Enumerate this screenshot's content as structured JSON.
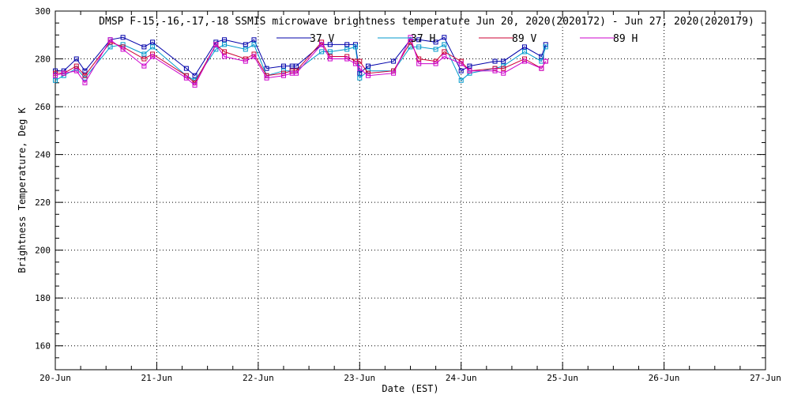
{
  "chart_data": {
    "type": "line",
    "title": "DMSP F-15,-16,-17,-18 SSMIS microwave brightness temperature Jun 20, 2020(2020172) - Jun 27, 2020(2020179)",
    "xlabel": "Date (EST)",
    "ylabel": "Brightness Temperature, Deg K",
    "xlim": [
      "2020-06-20T00:00",
      "2020-06-27T00:00"
    ],
    "ylim": [
      150,
      300
    ],
    "x_tick_labels": [
      "20-Jun",
      "21-Jun",
      "22-Jun",
      "23-Jun",
      "24-Jun",
      "25-Jun",
      "26-Jun",
      "27-Jun"
    ],
    "x_tick_values": [
      "2020-06-20T00:00",
      "2020-06-21T00:00",
      "2020-06-22T00:00",
      "2020-06-23T00:00",
      "2020-06-24T00:00",
      "2020-06-25T00:00",
      "2020-06-26T00:00",
      "2020-06-27T00:00"
    ],
    "y_tick_labels": [
      "160",
      "180",
      "200",
      "220",
      "240",
      "260",
      "280",
      "300"
    ],
    "y_tick_values": [
      160,
      180,
      200,
      220,
      240,
      260,
      280,
      300
    ],
    "grid": true,
    "legend_position": "top",
    "series": [
      {
        "name": "37 V",
        "color": "#0000aa",
        "points": [
          [
            "2020-06-20T00:00",
            275
          ],
          [
            "2020-06-20T02:00",
            275
          ],
          [
            "2020-06-20T05:00",
            280
          ],
          [
            "2020-06-20T07:00",
            275
          ],
          [
            "2020-06-20T13:00",
            288
          ],
          [
            "2020-06-20T16:00",
            289
          ],
          [
            "2020-06-20T21:00",
            285
          ],
          [
            "2020-06-20T23:00",
            287
          ],
          [
            "2020-06-21T07:00",
            276
          ],
          [
            "2020-06-21T09:00",
            273
          ],
          [
            "2020-06-21T14:00",
            287
          ],
          [
            "2020-06-21T16:00",
            288
          ],
          [
            "2020-06-21T21:00",
            286
          ],
          [
            "2020-06-21T23:00",
            288
          ],
          [
            "2020-06-22T02:00",
            276
          ],
          [
            "2020-06-22T06:00",
            277
          ],
          [
            "2020-06-22T08:00",
            277
          ],
          [
            "2020-06-22T09:00",
            277
          ],
          [
            "2020-06-22T15:00",
            286
          ],
          [
            "2020-06-22T17:00",
            286
          ],
          [
            "2020-06-22T21:00",
            286
          ],
          [
            "2020-06-22T23:00",
            286
          ],
          [
            "2020-06-23T00:00",
            274
          ],
          [
            "2020-06-23T02:00",
            277
          ],
          [
            "2020-06-23T08:00",
            279
          ],
          [
            "2020-06-23T12:00",
            288
          ],
          [
            "2020-06-23T14:00",
            288
          ],
          [
            "2020-06-23T18:00",
            287
          ],
          [
            "2020-06-23T20:00",
            289
          ],
          [
            "2020-06-24T00:00",
            275
          ],
          [
            "2020-06-24T02:00",
            277
          ],
          [
            "2020-06-24T08:00",
            279
          ],
          [
            "2020-06-24T10:00",
            279
          ],
          [
            "2020-06-24T15:00",
            285
          ],
          [
            "2020-06-24T19:00",
            281
          ],
          [
            "2020-06-24T20:00",
            286
          ]
        ]
      },
      {
        "name": "37 H",
        "color": "#0099cc",
        "points": [
          [
            "2020-06-20T00:00",
            271
          ],
          [
            "2020-06-20T02:00",
            273
          ],
          [
            "2020-06-20T05:00",
            276
          ],
          [
            "2020-06-20T07:00",
            272
          ],
          [
            "2020-06-20T13:00",
            285
          ],
          [
            "2020-06-20T16:00",
            286
          ],
          [
            "2020-06-20T21:00",
            282
          ],
          [
            "2020-06-20T23:00",
            285
          ],
          [
            "2020-06-21T07:00",
            273
          ],
          [
            "2020-06-21T09:00",
            271
          ],
          [
            "2020-06-21T14:00",
            284
          ],
          [
            "2020-06-21T16:00",
            286
          ],
          [
            "2020-06-21T21:00",
            284
          ],
          [
            "2020-06-21T23:00",
            286
          ],
          [
            "2020-06-22T02:00",
            273
          ],
          [
            "2020-06-22T06:00",
            275
          ],
          [
            "2020-06-22T08:00",
            275
          ],
          [
            "2020-06-22T09:00",
            275
          ],
          [
            "2020-06-22T15:00",
            283
          ],
          [
            "2020-06-22T17:00",
            283
          ],
          [
            "2020-06-22T21:00",
            284
          ],
          [
            "2020-06-22T23:00",
            285
          ],
          [
            "2020-06-23T00:00",
            272
          ],
          [
            "2020-06-23T02:00",
            275
          ],
          [
            "2020-06-23T08:00",
            275
          ],
          [
            "2020-06-23T12:00",
            285
          ],
          [
            "2020-06-23T14:00",
            285
          ],
          [
            "2020-06-23T18:00",
            284
          ],
          [
            "2020-06-23T20:00",
            286
          ],
          [
            "2020-06-24T00:00",
            271
          ],
          [
            "2020-06-24T02:00",
            274
          ],
          [
            "2020-06-24T08:00",
            276
          ],
          [
            "2020-06-24T10:00",
            277
          ],
          [
            "2020-06-24T15:00",
            283
          ],
          [
            "2020-06-24T19:00",
            279
          ],
          [
            "2020-06-24T20:00",
            285
          ]
        ]
      },
      {
        "name": "89 V",
        "color": "#cc0033",
        "points": [
          [
            "2020-06-20T00:00",
            274
          ],
          [
            "2020-06-20T02:00",
            274
          ],
          [
            "2020-06-20T05:00",
            277
          ],
          [
            "2020-06-20T07:00",
            273
          ],
          [
            "2020-06-20T13:00",
            287
          ],
          [
            "2020-06-20T16:00",
            285
          ],
          [
            "2020-06-20T21:00",
            280
          ],
          [
            "2020-06-20T23:00",
            282
          ],
          [
            "2020-06-21T07:00",
            273
          ],
          [
            "2020-06-21T09:00",
            270
          ],
          [
            "2020-06-21T14:00",
            286
          ],
          [
            "2020-06-21T16:00",
            283
          ],
          [
            "2020-06-21T21:00",
            280
          ],
          [
            "2020-06-21T23:00",
            282
          ],
          [
            "2020-06-22T02:00",
            273
          ],
          [
            "2020-06-22T06:00",
            274
          ],
          [
            "2020-06-22T08:00",
            275
          ],
          [
            "2020-06-22T09:00",
            275
          ],
          [
            "2020-06-22T15:00",
            287
          ],
          [
            "2020-06-22T17:00",
            281
          ],
          [
            "2020-06-22T21:00",
            281
          ],
          [
            "2020-06-22T23:00",
            279
          ],
          [
            "2020-06-23T00:00",
            279
          ],
          [
            "2020-06-23T02:00",
            274
          ],
          [
            "2020-06-23T08:00",
            275
          ],
          [
            "2020-06-23T12:00",
            287
          ],
          [
            "2020-06-23T14:00",
            280
          ],
          [
            "2020-06-23T18:00",
            279
          ],
          [
            "2020-06-23T20:00",
            283
          ],
          [
            "2020-06-24T00:00",
            279
          ],
          [
            "2020-06-24T02:00",
            275
          ],
          [
            "2020-06-24T08:00",
            276
          ],
          [
            "2020-06-24T10:00",
            276
          ],
          [
            "2020-06-24T15:00",
            280
          ],
          [
            "2020-06-24T19:00",
            276
          ],
          [
            "2020-06-24T20:00",
            279
          ]
        ]
      },
      {
        "name": "89 H",
        "color": "#cc00cc",
        "points": [
          [
            "2020-06-20T00:00",
            273
          ],
          [
            "2020-06-20T02:00",
            274
          ],
          [
            "2020-06-20T05:00",
            275
          ],
          [
            "2020-06-20T07:00",
            270
          ],
          [
            "2020-06-20T13:00",
            288
          ],
          [
            "2020-06-20T16:00",
            284
          ],
          [
            "2020-06-20T21:00",
            277
          ],
          [
            "2020-06-20T23:00",
            281
          ],
          [
            "2020-06-21T07:00",
            272
          ],
          [
            "2020-06-21T09:00",
            269
          ],
          [
            "2020-06-21T14:00",
            286
          ],
          [
            "2020-06-21T16:00",
            281
          ],
          [
            "2020-06-21T21:00",
            279
          ],
          [
            "2020-06-21T23:00",
            281
          ],
          [
            "2020-06-22T02:00",
            272
          ],
          [
            "2020-06-22T06:00",
            273
          ],
          [
            "2020-06-22T08:00",
            274
          ],
          [
            "2020-06-22T09:00",
            274
          ],
          [
            "2020-06-22T15:00",
            286
          ],
          [
            "2020-06-22T17:00",
            280
          ],
          [
            "2020-06-22T21:00",
            280
          ],
          [
            "2020-06-22T23:00",
            278
          ],
          [
            "2020-06-23T00:00",
            276
          ],
          [
            "2020-06-23T02:00",
            273
          ],
          [
            "2020-06-23T08:00",
            274
          ],
          [
            "2020-06-23T12:00",
            289
          ],
          [
            "2020-06-23T14:00",
            278
          ],
          [
            "2020-06-23T18:00",
            278
          ],
          [
            "2020-06-23T20:00",
            281
          ],
          [
            "2020-06-24T00:00",
            278
          ],
          [
            "2020-06-24T02:00",
            275
          ],
          [
            "2020-06-24T08:00",
            275
          ],
          [
            "2020-06-24T10:00",
            274
          ],
          [
            "2020-06-24T15:00",
            279
          ],
          [
            "2020-06-24T19:00",
            276
          ],
          [
            "2020-06-24T20:00",
            279
          ]
        ]
      }
    ]
  }
}
